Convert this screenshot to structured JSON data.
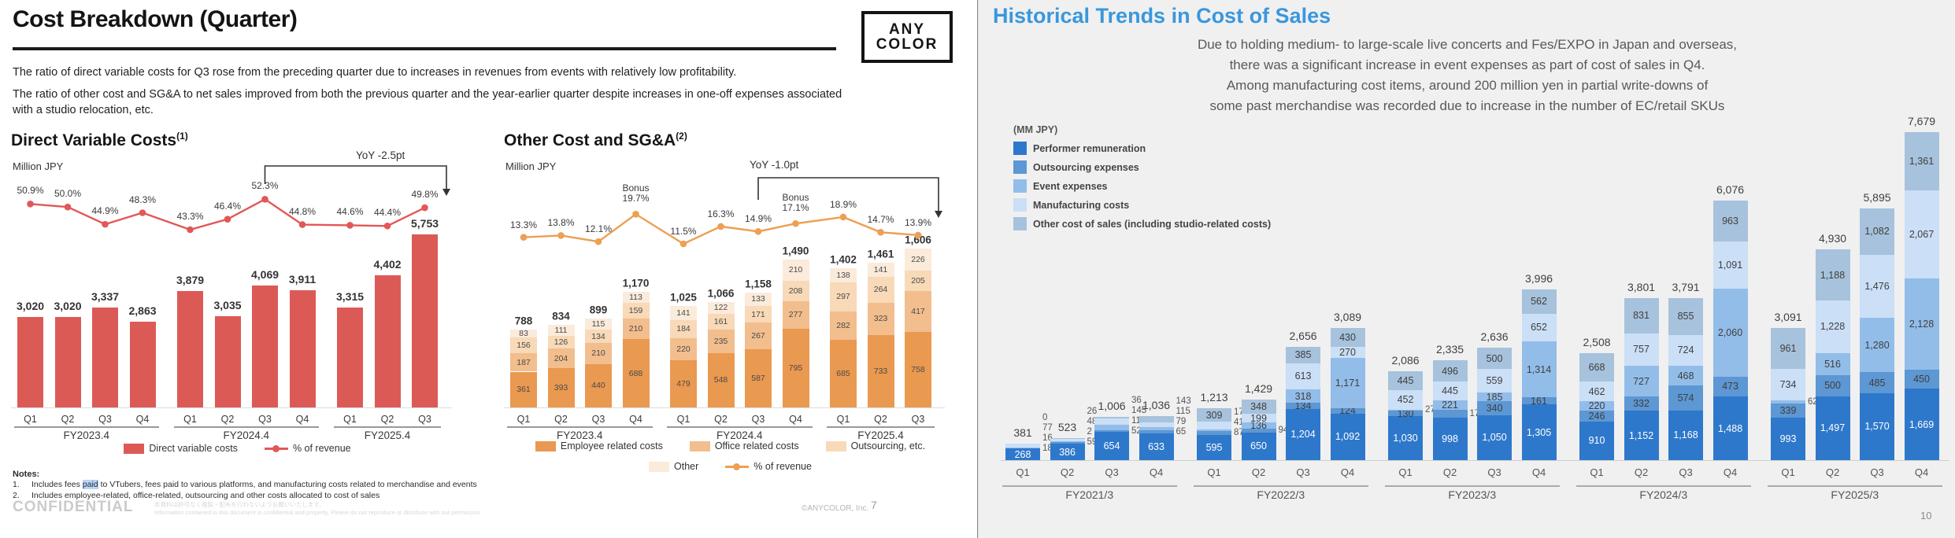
{
  "left": {
    "title": "Cost Breakdown (Quarter)",
    "logo": {
      "line1": "ANY",
      "line2": "COLOR"
    },
    "para1": "The ratio of direct variable costs for Q3 rose from the preceding quarter due to increases in revenues from events with relatively low profitability.",
    "para2": "The ratio of other cost and SG&A to net sales improved from both the previous quarter and the year-earlier quarter despite increases in one-off expenses associated with a studio relocation, etc.",
    "notes_title": "Notes:",
    "note1_num": "1.",
    "note1_pre": "Includes fees ",
    "note1_hl": "paid",
    "note1_post": " to VTubers, fees paid to various platforms, and manufacturing costs related to merchandise and events",
    "note2_num": "2.",
    "note2": "Includes employee-related, office-related, outsourcing and other costs allocated to cost of sales",
    "confidential": "CONFIDENTIAL",
    "disclaimer_jp": "本資料は許可なく複製・配布を行わないようお願いいたします。",
    "disclaimer_en": "Information contained in this document is confidential and property. Please do not reproduce or distribute with out permission.",
    "copyright": "©ANYCOLOR, Inc.",
    "page": "7"
  },
  "right": {
    "title": "Historical Trends in Cost of Sales",
    "paragraph": [
      "Due to holding medium- to large-scale live concerts and Fes/EXPO in Japan and overseas,",
      "there was a significant increase in event expenses as part of cost of sales in Q4.",
      "Among manufacturing cost items, around 200 million yen in partial write-downs of",
      "some past merchandise was recorded due to increase in the number of EC/retail SKUs"
    ],
    "mm_jpy": "(MM JPY)",
    "page": "10"
  },
  "chart_data": [
    {
      "type": "bar",
      "title": "Direct Variable Costs",
      "title_sup": "(1)",
      "unit": "Million JPY",
      "yoy_label": "YoY -2.5pt",
      "yoy_from_index": 6,
      "categories": [
        "Q1",
        "Q2",
        "Q3",
        "Q4",
        "Q1",
        "Q2",
        "Q3",
        "Q4",
        "Q1",
        "Q2",
        "Q3"
      ],
      "group_labels": [
        "FY2023.4",
        "FY2024.4",
        "FY2025.4"
      ],
      "group_sizes": [
        4,
        4,
        3
      ],
      "series": [
        {
          "name": "Direct variable costs",
          "values": [
            3020,
            3020,
            3337,
            2863,
            3879,
            3035,
            4069,
            3911,
            3315,
            4402,
            5753
          ]
        },
        {
          "name": "% of revenue",
          "values": [
            50.9,
            50.0,
            44.9,
            48.3,
            43.3,
            46.4,
            52.3,
            44.8,
            44.6,
            44.4,
            49.8
          ]
        }
      ],
      "bar_color": "#dc5a56",
      "line_color": "#e25757",
      "legend": [
        {
          "type": "swatch",
          "label": "Direct variable costs",
          "color": "#dc5a56"
        },
        {
          "type": "line",
          "label": "% of revenue",
          "color": "#e25757"
        }
      ]
    },
    {
      "type": "bar",
      "stacked": true,
      "title": "Other Cost and SG&A",
      "title_sup": "(2)",
      "unit": "Million JPY",
      "yoy_label": "YoY -1.0pt",
      "yoy_from_index": 6,
      "categories": [
        "Q1",
        "Q2",
        "Q3",
        "Q4",
        "Q1",
        "Q2",
        "Q3",
        "Q4",
        "Q1",
        "Q2",
        "Q3"
      ],
      "group_labels": [
        "FY2023.4",
        "FY2024.4",
        "FY2025.4"
      ],
      "group_sizes": [
        4,
        4,
        3
      ],
      "totals": [
        788,
        834,
        899,
        1170,
        1025,
        1066,
        1158,
        1490,
        1402,
        1461,
        1606
      ],
      "series": [
        {
          "name": "Employee related costs",
          "color": "#ea9950",
          "values": [
            361,
            393,
            440,
            688,
            479,
            548,
            587,
            795,
            685,
            733,
            758
          ]
        },
        {
          "name": "Office related costs",
          "color": "#f2be8d",
          "values": [
            187,
            204,
            210,
            210,
            220,
            235,
            267,
            277,
            282,
            323,
            417
          ]
        },
        {
          "name": "Outsourcing, etc.",
          "color": "#f8d9b8",
          "values": [
            156,
            126,
            134,
            159,
            184,
            161,
            171,
            208,
            297,
            264,
            205
          ]
        },
        {
          "name": "Other",
          "color": "#fbebdb",
          "values": [
            83,
            111,
            115,
            113,
            141,
            122,
            133,
            210,
            138,
            141,
            226
          ]
        }
      ],
      "pct_line": {
        "name": "% of revenue",
        "color": "#ed9f53",
        "values": [
          13.3,
          13.8,
          12.1,
          19.7,
          11.5,
          16.3,
          14.9,
          17.1,
          18.9,
          14.7,
          13.9
        ],
        "bonus_indices": [
          3,
          7
        ],
        "bonus_text": "Bonus"
      },
      "legend_rows": [
        [
          {
            "type": "swatch",
            "label": "Employee related costs",
            "color": "#ea9950"
          },
          {
            "type": "swatch",
            "label": "Office related costs",
            "color": "#f2be8d"
          },
          {
            "type": "swatch",
            "label": "Outsourcing, etc.",
            "color": "#f8d9b8"
          }
        ],
        [
          {
            "type": "swatch",
            "label": "Other",
            "color": "#fbebdb"
          },
          {
            "type": "line",
            "label": "% of revenue",
            "color": "#ed9f53"
          }
        ]
      ]
    },
    {
      "type": "bar",
      "stacked": true,
      "title": "Historical Trends in Cost of Sales",
      "unit": "MM JPY",
      "categories": [
        "Q1",
        "Q2",
        "Q3",
        "Q4",
        "Q1",
        "Q2",
        "Q3",
        "Q4",
        "Q1",
        "Q2",
        "Q3",
        "Q4",
        "Q1",
        "Q2",
        "Q3",
        "Q4",
        "Q1",
        "Q2",
        "Q3",
        "Q4"
      ],
      "group_labels": [
        "FY2021/3",
        "FY2022/3",
        "FY2023/3",
        "FY2024/3",
        "FY2025/3"
      ],
      "group_sizes": [
        4,
        4,
        4,
        4,
        4
      ],
      "totals": [
        381,
        523,
        1006,
        1036,
        1213,
        1429,
        2656,
        3089,
        2086,
        2335,
        2636,
        3996,
        2508,
        3801,
        3791,
        6076,
        3091,
        4930,
        5895,
        7679
      ],
      "series": [
        {
          "name": "Performer remuneration",
          "color": "#2e78cb",
          "values": [
            268,
            386,
            654,
            633,
            595,
            650,
            1204,
            1092,
            1030,
            998,
            1050,
            1305,
            910,
            1152,
            1168,
            1488,
            993,
            1497,
            1570,
            1669
          ]
        },
        {
          "name": "Outsourcing expenses",
          "color": "#5d97d4",
          "values": [
            18,
            59,
            52,
            65,
            87,
            94,
            134,
            124,
            130,
            175,
            340,
            161,
            246,
            332,
            574,
            473,
            339,
            500,
            485,
            450
          ]
        },
        {
          "name": "Event expenses",
          "color": "#93bde9",
          "values": [
            16,
            2,
            117,
            79,
            41,
            136,
            318,
            1171,
            27,
            221,
            185,
            1314,
            220,
            727,
            468,
            2060,
            62,
            516,
            1280,
            2128
          ]
        },
        {
          "name": "Manufacturing costs",
          "color": "#cbdff6",
          "values": [
            77,
            48,
            145,
            115,
            178,
            199,
            613,
            270,
            452,
            445,
            559,
            652,
            462,
            757,
            724,
            1091,
            734,
            1228,
            1476,
            2067
          ]
        },
        {
          "name": "Other cost of sales (including studio-related costs)",
          "color": "#a7c2dc",
          "values": [
            0,
            26,
            36,
            143,
            309,
            348,
            385,
            430,
            445,
            496,
            500,
            562,
            668,
            831,
            855,
            963,
            961,
            1188,
            1082,
            1361
          ]
        }
      ],
      "outside_label_indices": [
        [
          1,
          2,
          3,
          4
        ],
        [
          1,
          2,
          3,
          4
        ],
        [
          1,
          2,
          3,
          4
        ],
        [
          1,
          2,
          3,
          4
        ],
        [
          1,
          2,
          3
        ],
        [
          1
        ],
        [],
        [],
        [
          2
        ],
        [
          1
        ],
        [],
        [],
        [],
        [],
        [],
        [],
        [
          2
        ],
        [],
        [],
        []
      ],
      "legend": [
        {
          "type": "swatch",
          "label": "Performer remuneration",
          "color": "#2e78cb"
        },
        {
          "type": "swatch",
          "label": "Outsourcing expenses",
          "color": "#5d97d4"
        },
        {
          "type": "swatch",
          "label": "Event expenses",
          "color": "#93bde9"
        },
        {
          "type": "swatch",
          "label": "Manufacturing costs",
          "color": "#cbdff6"
        },
        {
          "type": "swatch",
          "label": "Other cost of sales (including studio-related costs)",
          "color": "#a7c2dc"
        }
      ]
    }
  ]
}
